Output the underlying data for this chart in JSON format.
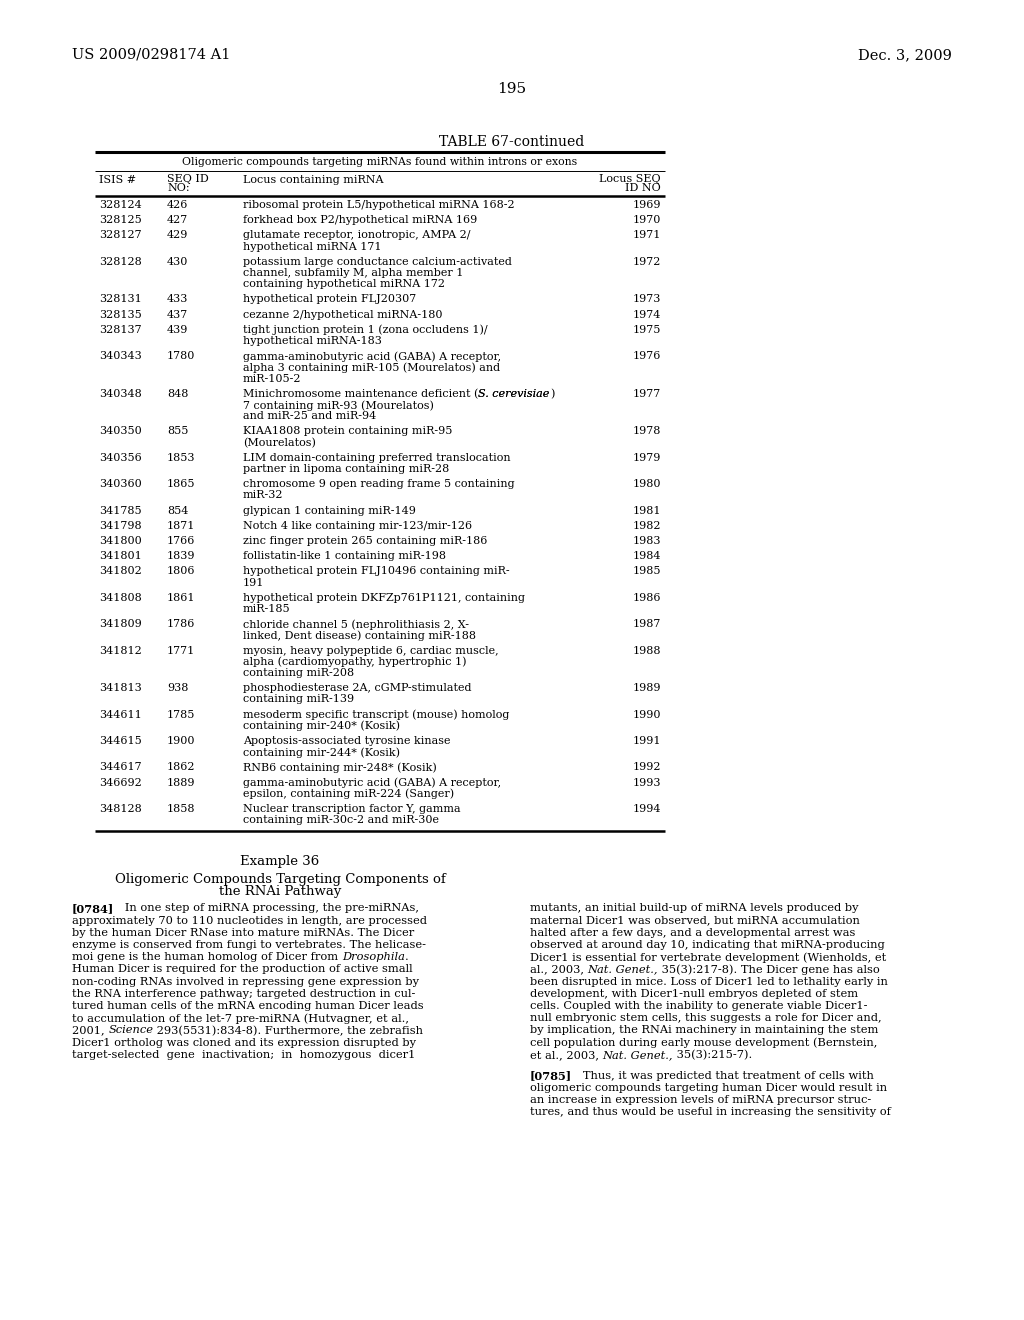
{
  "page_number": "195",
  "patent_left": "US 2009/0298174 A1",
  "patent_right": "Dec. 3, 2009",
  "table_title": "TABLE 67-continued",
  "table_subtitle": "Oligomeric compounds targeting miRNAs found within introns or exons",
  "table_rows": [
    [
      "328124",
      "426",
      "ribosomal protein L5/hypothetical miRNA 168-2",
      "1969",
      1
    ],
    [
      "328125",
      "427",
      "forkhead box P2/hypothetical miRNA 169",
      "1970",
      1
    ],
    [
      "328127",
      "429",
      "glutamate receptor, ionotropic, AMPA 2/\nhypothetical miRNA 171",
      "1971",
      2
    ],
    [
      "328128",
      "430",
      "potassium large conductance calcium-activated\nchannel, subfamily M, alpha member 1\ncontaining hypothetical miRNA 172",
      "1972",
      3
    ],
    [
      "328131",
      "433",
      "hypothetical protein FLJ20307",
      "1973",
      1
    ],
    [
      "328135",
      "437",
      "cezanne 2/hypothetical miRNA-180",
      "1974",
      1
    ],
    [
      "328137",
      "439",
      "tight junction protein 1 (zona occludens 1)/\nhypothetical miRNA-183",
      "1975",
      2
    ],
    [
      "340343",
      "1780",
      "gamma-aminobutyric acid (GABA) A receptor,\nalpha 3 containing miR-105 (Mourelatos) and\nmiR-105-2",
      "1976",
      3
    ],
    [
      "340348",
      "848",
      "Minichromosome maintenance deficient (S. cerevisiae)\n7 containing miR-93 (Mourelatos)\nand miR-25 and miR-94",
      "1977",
      3
    ],
    [
      "340350",
      "855",
      "KIAA1808 protein containing miR-95\n(Mourelatos)",
      "1978",
      2
    ],
    [
      "340356",
      "1853",
      "LIM domain-containing preferred translocation\npartner in lipoma containing miR-28",
      "1979",
      2
    ],
    [
      "340360",
      "1865",
      "chromosome 9 open reading frame 5 containing\nmiR-32",
      "1980",
      2
    ],
    [
      "341785",
      "854",
      "glypican 1 containing miR-149",
      "1981",
      1
    ],
    [
      "341798",
      "1871",
      "Notch 4 like containing mir-123/mir-126",
      "1982",
      1
    ],
    [
      "341800",
      "1766",
      "zinc finger protein 265 containing miR-186",
      "1983",
      1
    ],
    [
      "341801",
      "1839",
      "follistatin-like 1 containing miR-198",
      "1984",
      1
    ],
    [
      "341802",
      "1806",
      "hypothetical protein FLJ10496 containing miR-\n191",
      "1985",
      2
    ],
    [
      "341808",
      "1861",
      "hypothetical protein DKFZp761P1121, containing\nmiR-185",
      "1986",
      2
    ],
    [
      "341809",
      "1786",
      "chloride channel 5 (nephrolithiasis 2, X-\nlinked, Dent disease) containing miR-188",
      "1987",
      2
    ],
    [
      "341812",
      "1771",
      "myosin, heavy polypeptide 6, cardiac muscle,\nalpha (cardiomyopathy, hypertrophic 1)\ncontaining miR-208",
      "1988",
      3
    ],
    [
      "341813",
      "938",
      "phosphodiesterase 2A, cGMP-stimulated\ncontaining miR-139",
      "1989",
      2
    ],
    [
      "344611",
      "1785",
      "mesoderm specific transcript (mouse) homolog\ncontaining mir-240* (Kosik)",
      "1990",
      2
    ],
    [
      "344615",
      "1900",
      "Apoptosis-associated tyrosine kinase\ncontaining mir-244* (Kosik)",
      "1991",
      2
    ],
    [
      "344617",
      "1862",
      "RNB6 containing mir-248* (Kosik)",
      "1992",
      1
    ],
    [
      "346692",
      "1889",
      "gamma-aminobutyric acid (GABA) A receptor,\nepsilon, containing miR-224 (Sanger)",
      "1993",
      2
    ],
    [
      "348128",
      "1858",
      "Nuclear transcription factor Y, gamma\ncontaining miR-30c-2 and miR-30e",
      "1994",
      2
    ]
  ],
  "example_title": "Example 36",
  "example_sub1": "Oligomeric Compounds Targeting Components of",
  "example_sub2": "the RNAi Pathway",
  "left_col_lines": [
    {
      "text": "[0784]",
      "bold": true,
      "after": "   In one step of miRNA processing, the pre-miRNAs,"
    },
    {
      "text": "approximately 70 to 110 nucleotides in length, are processed",
      "bold": false
    },
    {
      "text": "by the human Dicer RNase into mature miRNAs. The Dicer",
      "bold": false
    },
    {
      "text": "enzyme is conserved from fungi to vertebrates. The helicase-",
      "bold": false
    },
    {
      "text": "moi gene is the human homolog of Dicer from ",
      "bold": false,
      "italic_suffix": "Drosophila",
      "after_italic": "."
    },
    {
      "text": "Human Dicer is required for the production of active small",
      "bold": false
    },
    {
      "text": "non-coding RNAs involved in repressing gene expression by",
      "bold": false
    },
    {
      "text": "the RNA interference pathway; targeted destruction in cul-",
      "bold": false
    },
    {
      "text": "tured human cells of the mRNA encoding human Dicer leads",
      "bold": false
    },
    {
      "text": "to accumulation of the let-7 pre-miRNA (Hutvagner, et al.,",
      "bold": false
    },
    {
      "text": "2001, ",
      "bold": false,
      "italic_suffix": "Science",
      "after_italic": " 293(5531):834-8). Furthermore, the zebrafish"
    },
    {
      "text": "Dicer1 ortholog was cloned and its expression disrupted by",
      "bold": false
    },
    {
      "text": "target-selected  gene  inactivation;  in  homozygous  dicer1",
      "bold": false
    }
  ],
  "right_col_lines_top": [
    "mutants, an initial build-up of miRNA levels produced by",
    "maternal Dicer1 was observed, but miRNA accumulation",
    "halted after a few days, and a developmental arrest was",
    "observed at around day 10, indicating that miRNA-producing",
    "Dicer1 is essential for vertebrate development (Wienholds, et",
    "al., 2003, [italic]Nat. Genet.,[/italic] 35(3):217-8). The Dicer gene has also",
    "been disrupted in mice. Loss of Dicer1 led to lethality early in",
    "development, with Dicer1-null embryos depleted of stem",
    "cells. Coupled with the inability to generate viable Dicer1-",
    "null embryonic stem cells, this suggests a role for Dicer and,",
    "by implication, the RNAi machinery in maintaining the stem",
    "cell population during early mouse development (Bernstein,",
    "et al., 2003, [italic]Nat. Genet.,[/italic] 35(3):215-7)."
  ],
  "right_col_lines_0785": [
    {
      "text": "[0785]",
      "bold": true,
      "after": "   Thus, it was predicted that treatment of cells with"
    },
    {
      "text": "oligomeric compounds targeting human Dicer would result in",
      "bold": false
    },
    {
      "text": "an increase in expression levels of miRNA precursor struc-",
      "bold": false
    },
    {
      "text": "tures, and thus would be useful in increasing the sensitivity of",
      "bold": false
    }
  ]
}
